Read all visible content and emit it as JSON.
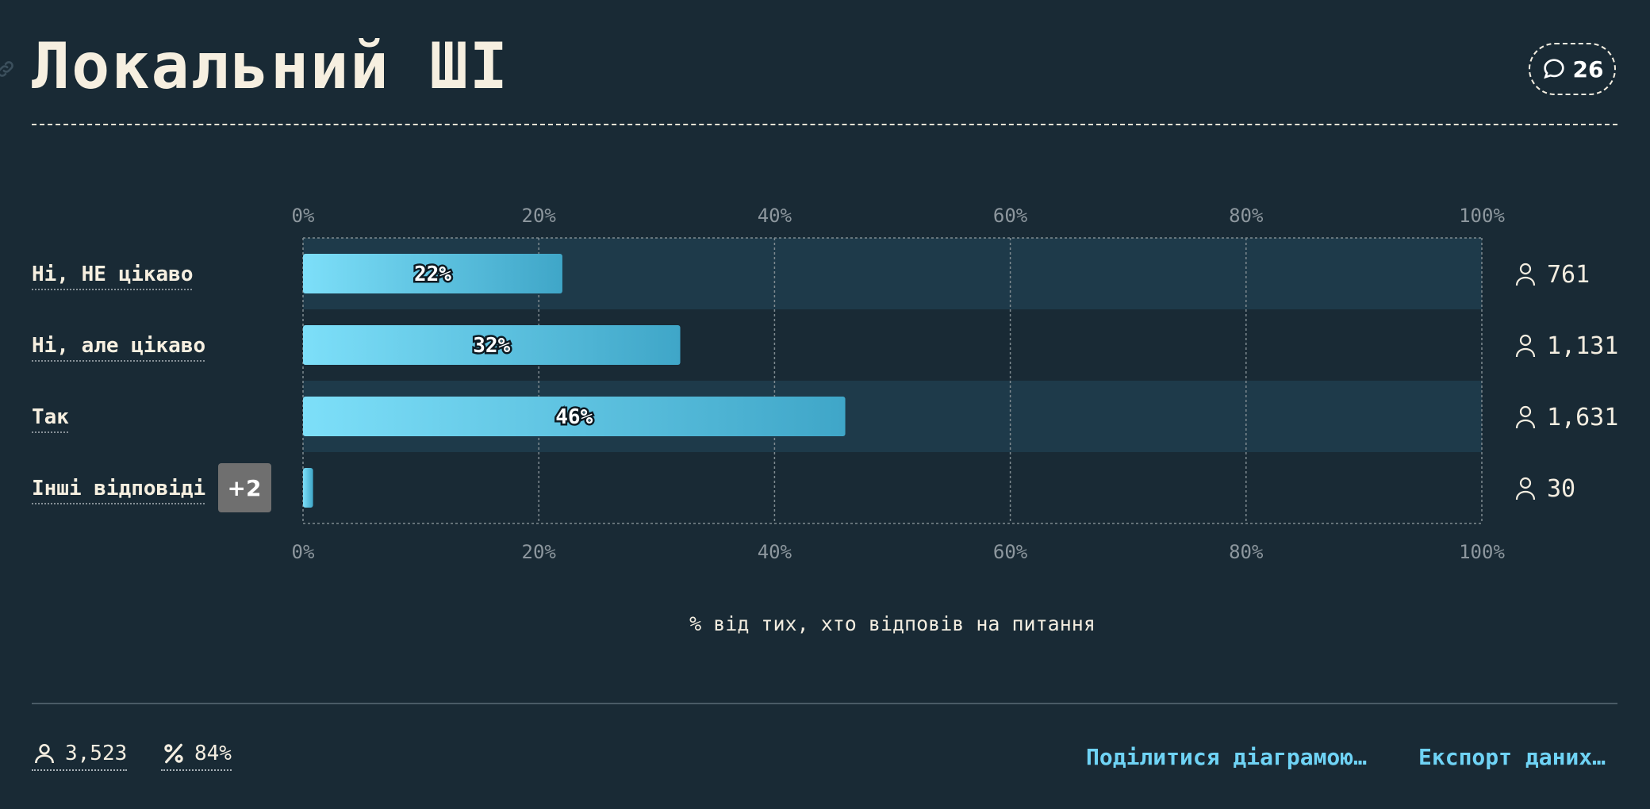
{
  "header": {
    "title": "Локальний ШІ",
    "comment_count": "26"
  },
  "chart_data": {
    "type": "bar",
    "orientation": "horizontal",
    "categories": [
      "Ні, НЕ цікаво",
      "Ні, але цікаво",
      "Так",
      "Інші відповіді"
    ],
    "values": [
      22,
      32,
      46,
      0.85
    ],
    "value_labels": [
      "22%",
      "32%",
      "46%",
      ""
    ],
    "counts": [
      "761",
      "1,131",
      "1,631",
      "30"
    ],
    "other_badge": "+2",
    "xlim": [
      0,
      100
    ],
    "x_ticks": [
      "0%",
      "20%",
      "40%",
      "60%",
      "80%",
      "100%"
    ],
    "xlabel": "% від тих, хто відповів на питання",
    "grid": true,
    "colors": {
      "bar_start": "#7ddff9",
      "bar_end": "#3fa6c8",
      "row_band": "#1e3a4a",
      "badge": "#6f6f6f"
    }
  },
  "footer": {
    "respondents": "3,523",
    "response_rate": "84%",
    "share_label": "Поділитися діаграмою…",
    "export_label": "Експорт даних…"
  }
}
